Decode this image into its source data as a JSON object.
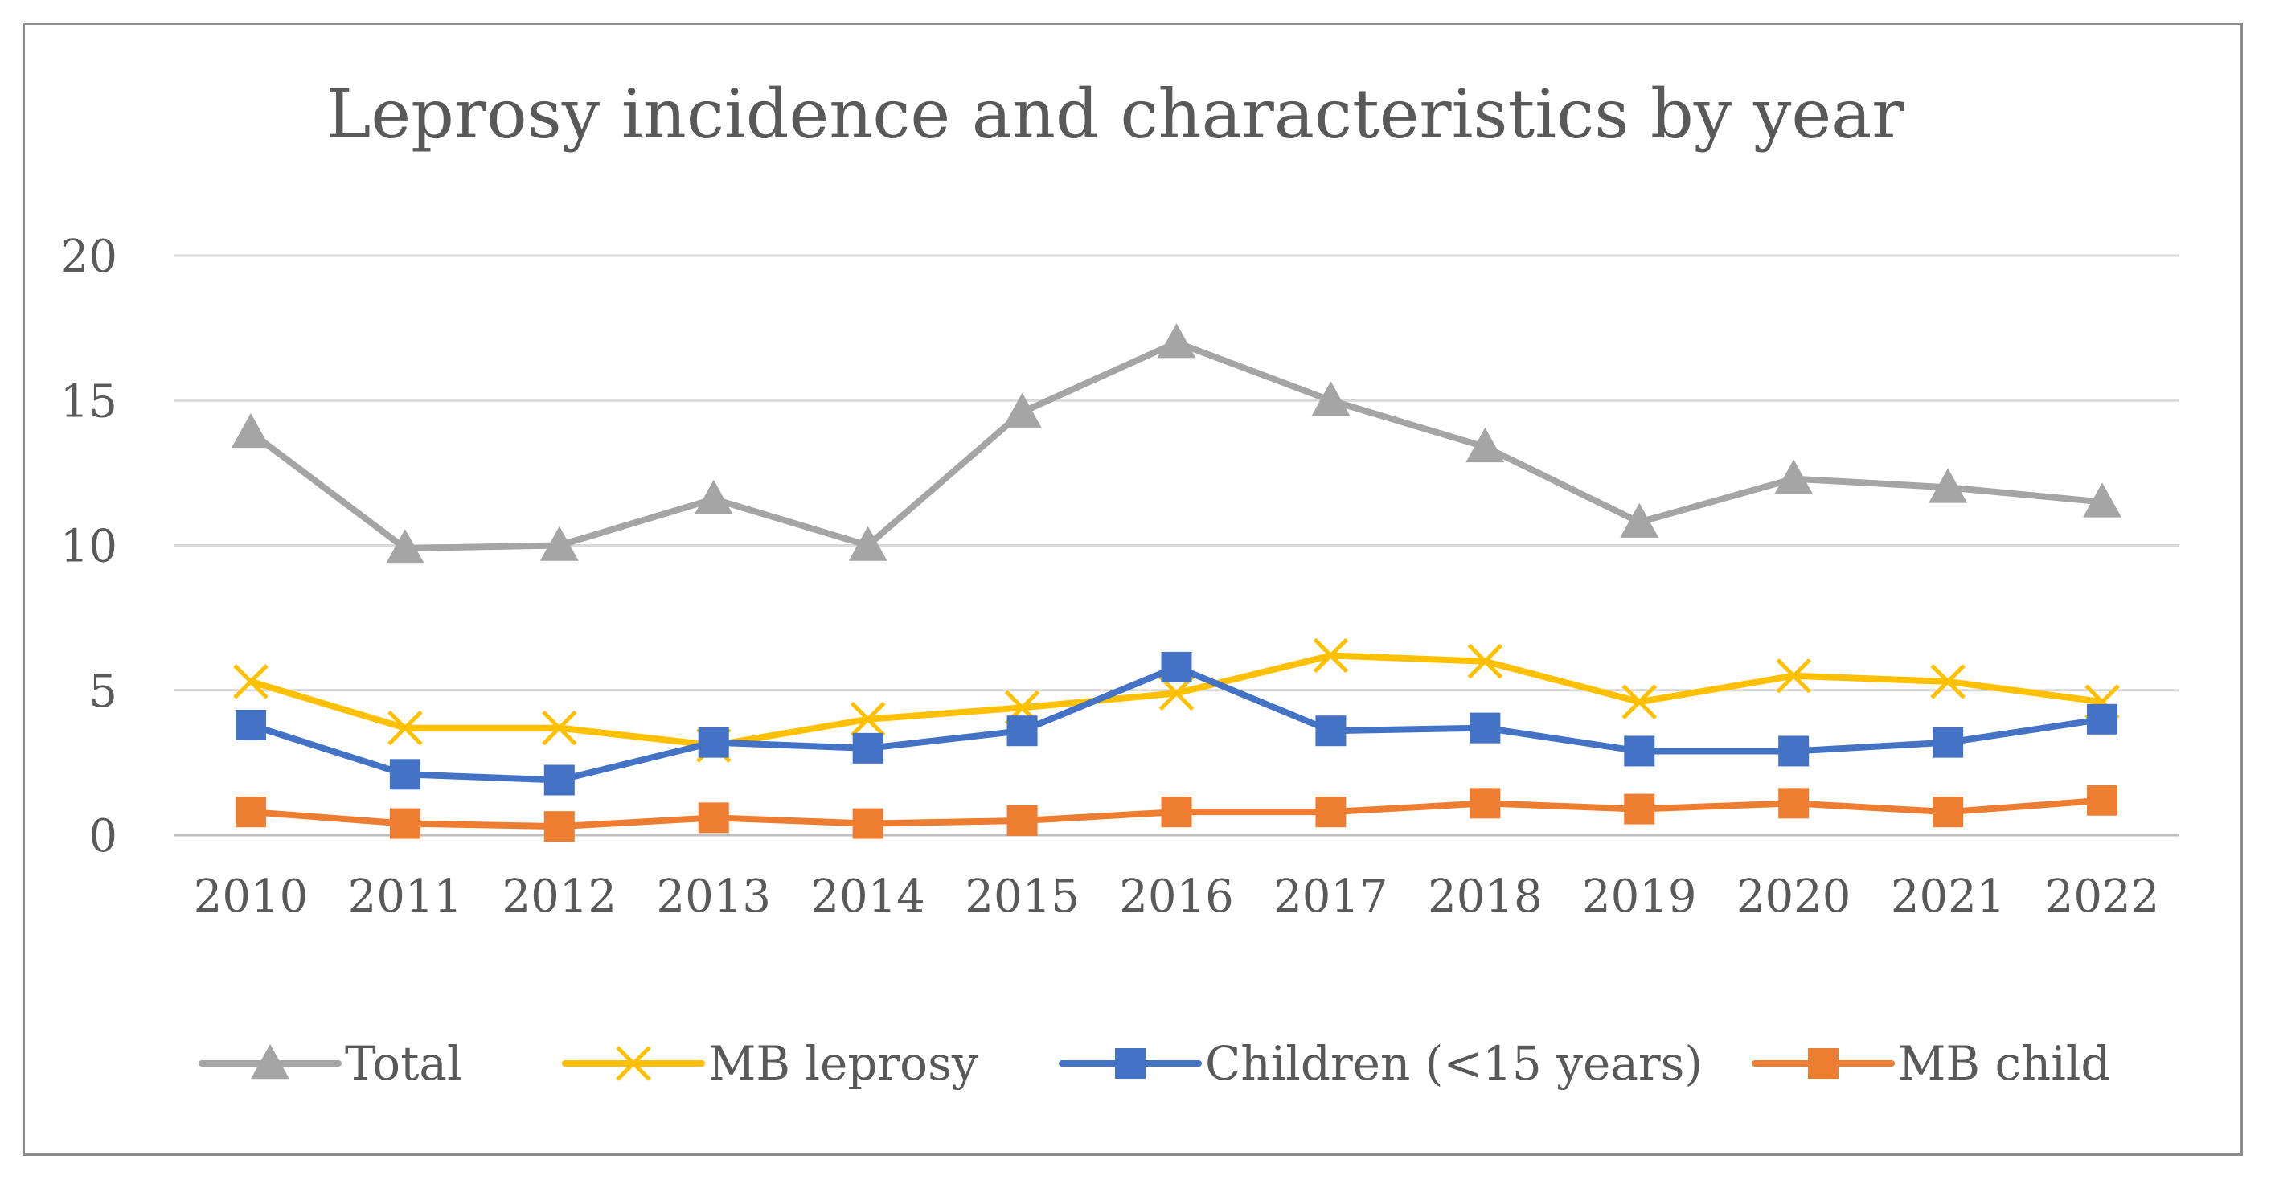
{
  "chart_data": {
    "type": "line",
    "title": "Leprosy incidence and characteristics by year",
    "xlabel": "",
    "ylabel": "",
    "ylim": [
      0,
      20
    ],
    "yticks": [
      0,
      5,
      10,
      15,
      20
    ],
    "y_tick_labels": [
      "0",
      "5",
      "10",
      "15",
      "20"
    ],
    "grid": true,
    "legend_position": "bottom",
    "categories": [
      "2010",
      "2011",
      "2012",
      "2013",
      "2014",
      "2015",
      "2016",
      "2017",
      "2018",
      "2019",
      "2020",
      "2021",
      "2022"
    ],
    "series": [
      {
        "name": "Total",
        "marker": "triangle",
        "color": "#a5a5a5",
        "values": [
          13.9,
          9.9,
          10.0,
          11.6,
          10.0,
          14.6,
          17.0,
          15.0,
          13.4,
          10.8,
          12.3,
          12.0,
          11.5
        ]
      },
      {
        "name": "MB leprosy",
        "marker": "x",
        "color": "#ffc000",
        "values": [
          5.3,
          3.7,
          3.7,
          3.1,
          4.0,
          4.4,
          4.9,
          6.2,
          6.0,
          4.6,
          5.5,
          5.3,
          4.6
        ]
      },
      {
        "name": "Children (<15 years)",
        "marker": "square",
        "color": "#4472c4",
        "values": [
          3.8,
          2.1,
          1.9,
          3.2,
          3.0,
          3.6,
          5.8,
          3.6,
          3.7,
          2.9,
          2.9,
          3.2,
          4.0
        ]
      },
      {
        "name": "MB child",
        "marker": "square",
        "color": "#ed7d31",
        "values": [
          0.8,
          0.4,
          0.3,
          0.6,
          0.4,
          0.5,
          0.8,
          0.8,
          1.1,
          0.9,
          1.1,
          0.8,
          1.2
        ]
      }
    ]
  }
}
